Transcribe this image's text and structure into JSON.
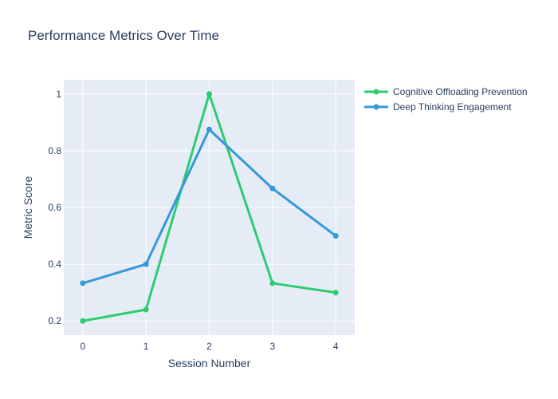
{
  "chart_data": {
    "type": "line",
    "title": "Performance Metrics Over Time",
    "xlabel": "Session Number",
    "ylabel": "Metric Score",
    "x": [
      0,
      1,
      2,
      3,
      4
    ],
    "xlim": [
      -0.3,
      4.3
    ],
    "ylim": [
      0.15,
      1.05
    ],
    "xticks": [
      "0",
      "1",
      "2",
      "3",
      "4"
    ],
    "yticks": [
      0.2,
      0.4,
      0.6,
      0.8,
      1.0
    ],
    "ytick_labels": [
      "0.2",
      "0.4",
      "0.6",
      "0.8",
      "1"
    ],
    "grid": true,
    "legend_position": "top-right",
    "plot_background": "#e5ecf6",
    "series": [
      {
        "name": "Cognitive Offloading Prevention",
        "color": "#2ecc71",
        "values": [
          0.2,
          0.24,
          1.0,
          0.333,
          0.3
        ]
      },
      {
        "name": "Deep Thinking Engagement",
        "color": "#3498db",
        "values": [
          0.333,
          0.4,
          0.875,
          0.667,
          0.5
        ]
      }
    ]
  }
}
